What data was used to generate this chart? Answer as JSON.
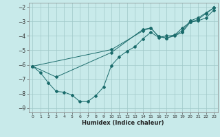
{
  "xlabel": "Humidex (Indice chaleur)",
  "xlim": [
    -0.5,
    23.5
  ],
  "ylim": [
    -9.3,
    -1.7
  ],
  "yticks": [
    -9,
    -8,
    -7,
    -6,
    -5,
    -4,
    -3,
    -2
  ],
  "xticks": [
    0,
    1,
    2,
    3,
    4,
    5,
    6,
    7,
    8,
    9,
    10,
    11,
    12,
    13,
    14,
    15,
    16,
    17,
    18,
    19,
    20,
    21,
    22,
    23
  ],
  "bg_color": "#c8eaea",
  "grid_color": "#a0c8c8",
  "line_color": "#1a6b6b",
  "series1_x": [
    0,
    1,
    2,
    3,
    4,
    5,
    6,
    7,
    8,
    9,
    10,
    11,
    12,
    13,
    14,
    15,
    16,
    17,
    18,
    19,
    20,
    21,
    22,
    23
  ],
  "series1_y": [
    -6.1,
    -6.55,
    -7.25,
    -7.85,
    -7.9,
    -8.1,
    -8.55,
    -8.55,
    -8.15,
    -7.55,
    -6.05,
    -5.45,
    -5.05,
    -4.75,
    -4.2,
    -3.75,
    -4.1,
    -4.0,
    -3.95,
    -3.45,
    -3.05,
    -2.95,
    -2.75,
    -2.2
  ],
  "series2_x": [
    0,
    3,
    10,
    14,
    15,
    16,
    17,
    18,
    19,
    20,
    21,
    22,
    23
  ],
  "series2_y": [
    -6.1,
    -6.85,
    -5.15,
    -3.55,
    -3.45,
    -4.05,
    -4.15,
    -4.0,
    -3.75,
    -3.05,
    -2.85,
    -2.45,
    -2.05
  ],
  "series3_x": [
    0,
    10,
    14,
    15,
    16,
    17,
    18,
    19,
    20,
    21,
    22,
    23
  ],
  "series3_y": [
    -6.1,
    -4.95,
    -3.65,
    -3.45,
    -4.05,
    -4.15,
    -3.95,
    -3.65,
    -2.95,
    -2.75,
    -2.4,
    -2.05
  ]
}
